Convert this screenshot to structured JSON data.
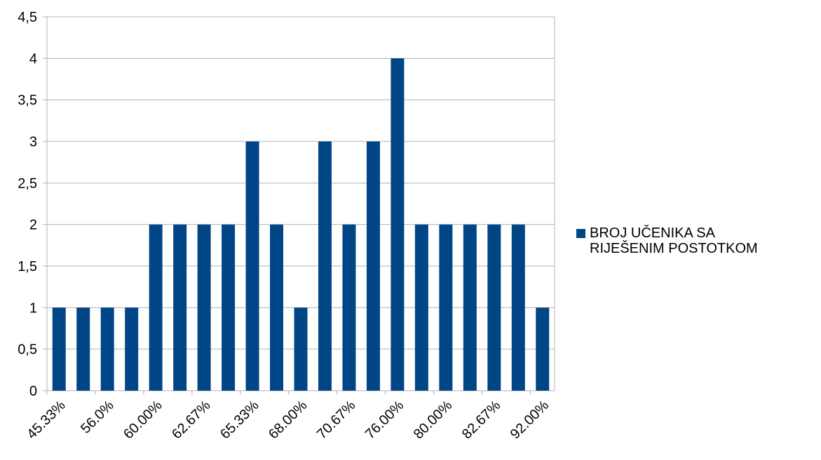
{
  "chart_data": {
    "type": "bar",
    "categories": [
      "45.33%",
      "",
      "56.0%",
      "",
      "60.00%",
      "",
      "62.67%",
      "",
      "65.33%",
      "",
      "68.00%",
      "",
      "70.67%",
      "",
      "76.00%",
      "",
      "80.00%",
      "",
      "82.67%",
      "",
      "92.00%"
    ],
    "series": [
      {
        "name": "BROJ UČENIKA SA\nRIJEŠENIM POSTOTKOM",
        "color": "#004586",
        "values": [
          1,
          1,
          1,
          1,
          2,
          2,
          2,
          2,
          3,
          2,
          1,
          3,
          2,
          3,
          4,
          2,
          2,
          2,
          2,
          2,
          1
        ]
      }
    ],
    "ylim": [
      0,
      4.5
    ],
    "yticks": [
      "0",
      "0,5",
      "1",
      "1,5",
      "2",
      "2,5",
      "3",
      "3,5",
      "4",
      "4,5"
    ],
    "grid": true,
    "legend_position": "right",
    "title": "",
    "xlabel": "",
    "ylabel": ""
  }
}
